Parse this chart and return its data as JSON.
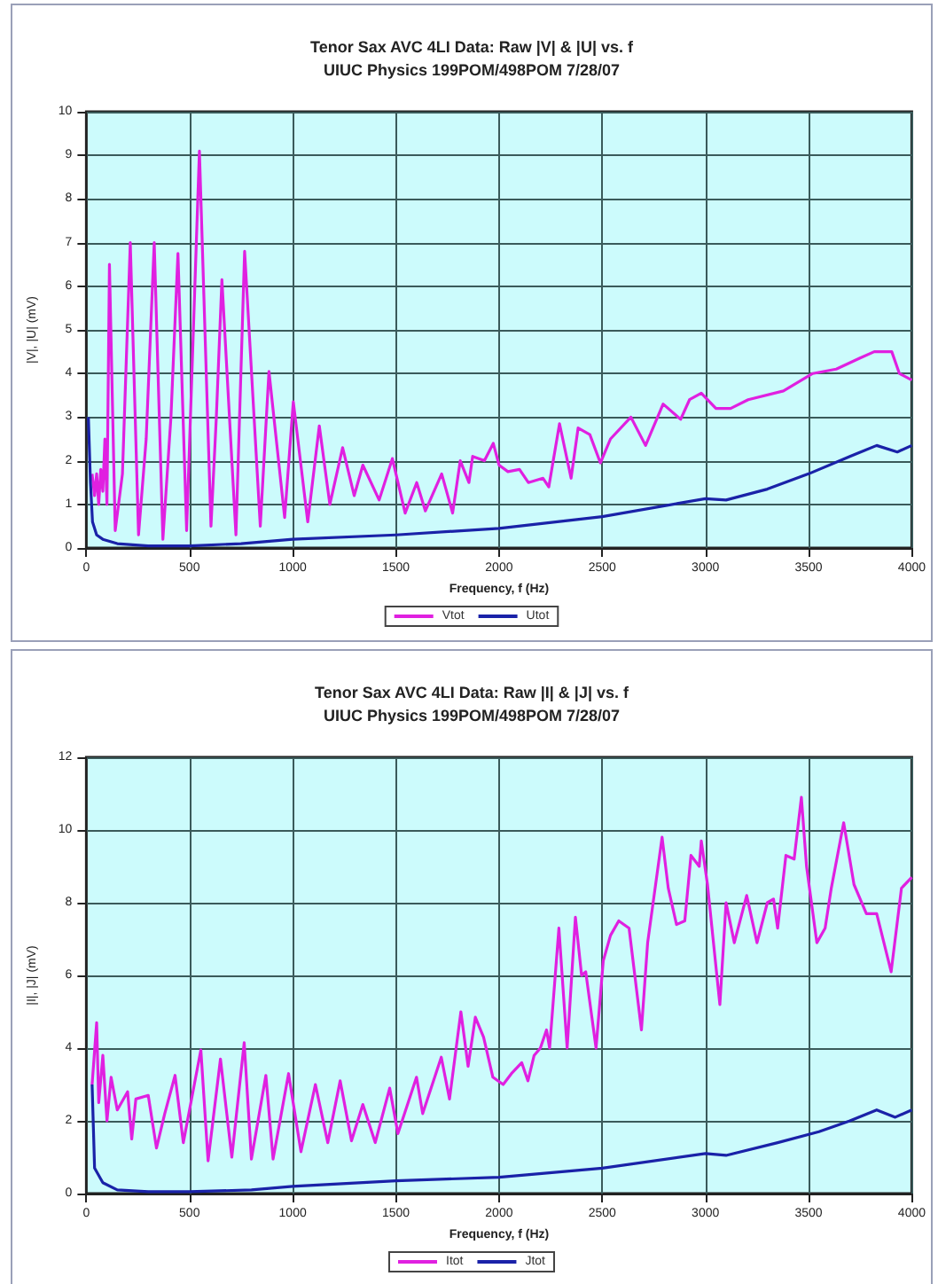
{
  "chart_data": [
    {
      "type": "line",
      "title": "Tenor Sax AVC 4LI Data: Raw |V| & |U| vs. f",
      "subtitle": "UIUC Physics 199POM/498POM 7/28/07",
      "xlabel": "Frequency, f (Hz)",
      "ylabel": "|V|, |U| (mV)",
      "xlim": [
        0,
        4000
      ],
      "xticks": [
        0,
        500,
        1000,
        1500,
        2000,
        2500,
        3000,
        3500,
        4000
      ],
      "ylim": [
        0,
        10
      ],
      "yticks": [
        0,
        1,
        2,
        3,
        4,
        5,
        6,
        7,
        8,
        9,
        10
      ],
      "grid": true,
      "legend": "bottom",
      "marker": "none",
      "series": [
        {
          "name": "Vtot",
          "color": "#e020e0",
          "x": [
            28,
            40,
            50,
            60,
            70,
            80,
            90,
            100,
            112,
            140,
            175,
            213,
            253,
            290,
            329,
            371,
            410,
            444,
            486,
            548,
            604,
            630,
            657,
            725,
            767,
            843,
            885,
            961,
            1003,
            1073,
            1129,
            1180,
            1242,
            1298,
            1340,
            1419,
            1483,
            1545,
            1601,
            1643,
            1722,
            1775,
            1812,
            1854,
            1872,
            1929,
            1972,
            2000,
            2043,
            2099,
            2142,
            2213,
            2241,
            2293,
            2349,
            2383,
            2440,
            2491,
            2540,
            2639,
            2710,
            2795,
            2880,
            2923,
            2980,
            3051,
            3122,
            3207,
            3378,
            3520,
            3634,
            3747,
            3818,
            3903,
            3940,
            4000
          ],
          "values": [
            1.7,
            1.2,
            1.7,
            1.0,
            1.8,
            1.3,
            2.5,
            1.0,
            6.5,
            0.4,
            1.7,
            7.0,
            0.3,
            2.5,
            7.0,
            0.2,
            3.0,
            6.75,
            0.4,
            9.1,
            0.5,
            3.0,
            6.15,
            0.3,
            6.8,
            0.5,
            4.05,
            0.7,
            3.35,
            0.6,
            2.8,
            1.0,
            2.3,
            1.2,
            1.9,
            1.1,
            2.05,
            0.8,
            1.5,
            0.85,
            1.7,
            0.8,
            2.0,
            1.5,
            2.1,
            2.0,
            2.4,
            1.9,
            1.75,
            1.8,
            1.5,
            1.6,
            1.4,
            2.85,
            1.6,
            2.75,
            2.6,
            1.95,
            2.5,
            3.0,
            2.35,
            3.3,
            2.95,
            3.4,
            3.55,
            3.2,
            3.2,
            3.4,
            3.6,
            4.0,
            4.1,
            4.35,
            4.5,
            4.5,
            4.0,
            3.85
          ]
        },
        {
          "name": "Utot",
          "color": "#1a22a8",
          "x": [
            10,
            20,
            30,
            50,
            80,
            150,
            300,
            500,
            750,
            1000,
            1500,
            2000,
            2500,
            3000,
            3100,
            3300,
            3500,
            3700,
            3830,
            3930,
            4000
          ],
          "values": [
            3.0,
            1.5,
            0.6,
            0.3,
            0.2,
            0.1,
            0.05,
            0.05,
            0.1,
            0.2,
            0.3,
            0.45,
            0.72,
            1.13,
            1.1,
            1.35,
            1.7,
            2.1,
            2.35,
            2.2,
            2.35
          ]
        }
      ]
    },
    {
      "type": "line",
      "title": "Tenor Sax AVC 4LI Data: Raw |I| & |J| vs. f",
      "subtitle": "UIUC Physics 199POM/498POM 7/28/07",
      "xlabel": "Frequency, f (Hz)",
      "ylabel": "|I|, |J| (mV)",
      "xlim": [
        0,
        4000
      ],
      "xticks": [
        0,
        500,
        1000,
        1500,
        2000,
        2500,
        3000,
        3500,
        4000
      ],
      "ylim": [
        0,
        12
      ],
      "yticks": [
        0,
        2,
        4,
        6,
        8,
        10,
        12
      ],
      "grid": true,
      "legend": "bottom",
      "marker": "none",
      "series": [
        {
          "name": "Itot",
          "color": "#e020e0",
          "x": [
            28,
            50,
            60,
            80,
            100,
            120,
            150,
            200,
            220,
            240,
            300,
            340,
            380,
            430,
            470,
            555,
            590,
            650,
            705,
            765,
            800,
            870,
            905,
            980,
            1040,
            1110,
            1170,
            1230,
            1285,
            1340,
            1400,
            1470,
            1510,
            1600,
            1630,
            1720,
            1760,
            1815,
            1850,
            1885,
            1925,
            1970,
            2020,
            2060,
            2110,
            2140,
            2170,
            2200,
            2230,
            2245,
            2290,
            2330,
            2370,
            2400,
            2420,
            2470,
            2505,
            2540,
            2580,
            2630,
            2690,
            2720,
            2790,
            2820,
            2860,
            2900,
            2930,
            2970,
            2980,
            3010,
            3070,
            3100,
            3140,
            3200,
            3250,
            3300,
            3330,
            3350,
            3390,
            3430,
            3465,
            3490,
            3540,
            3580,
            3610,
            3670,
            3720,
            3780,
            3830,
            3900,
            3950,
            4000
          ],
          "values": [
            3.0,
            4.7,
            2.5,
            3.8,
            2.0,
            3.2,
            2.3,
            2.8,
            1.5,
            2.6,
            2.7,
            1.25,
            2.2,
            3.25,
            1.4,
            3.95,
            0.9,
            3.7,
            1.0,
            4.15,
            0.95,
            3.25,
            0.95,
            3.3,
            1.15,
            3.0,
            1.4,
            3.1,
            1.45,
            2.45,
            1.4,
            2.9,
            1.65,
            3.2,
            2.2,
            3.75,
            2.6,
            5.0,
            3.5,
            4.85,
            4.3,
            3.2,
            3.0,
            3.3,
            3.6,
            3.1,
            3.8,
            4.0,
            4.5,
            4.0,
            7.3,
            4.0,
            7.6,
            6.0,
            6.1,
            4.0,
            6.4,
            7.1,
            7.5,
            7.3,
            4.5,
            6.9,
            9.8,
            8.4,
            7.4,
            7.5,
            9.3,
            9.0,
            9.7,
            8.5,
            5.2,
            8.0,
            6.9,
            8.2,
            6.9,
            8.0,
            8.1,
            7.3,
            9.3,
            9.2,
            10.9,
            9.0,
            6.9,
            7.3,
            8.4,
            10.2,
            8.5,
            7.7,
            7.7,
            6.1,
            8.4,
            8.7
          ]
        },
        {
          "name": "Jtot",
          "color": "#1a22a8",
          "x": [
            28,
            40,
            80,
            150,
            300,
            500,
            800,
            1000,
            1500,
            2000,
            2500,
            3000,
            3100,
            3350,
            3550,
            3700,
            3830,
            3920,
            4000
          ],
          "values": [
            3.0,
            0.7,
            0.3,
            0.1,
            0.05,
            0.05,
            0.1,
            0.2,
            0.35,
            0.45,
            0.7,
            1.1,
            1.05,
            1.4,
            1.7,
            2.0,
            2.3,
            2.1,
            2.3
          ]
        }
      ]
    }
  ]
}
